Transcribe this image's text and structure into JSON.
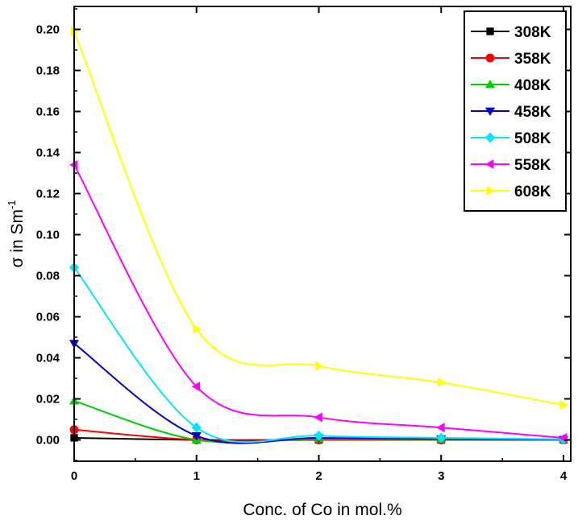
{
  "chart_data": {
    "type": "line",
    "xlabel": "Conc. of Co in mol.%",
    "ylabel": "σ in Sm",
    "ylabel_superscript": "-1",
    "xlim": [
      0,
      4
    ],
    "ylim": [
      -0.01,
      0.21
    ],
    "x_ticks": [
      0,
      1,
      2,
      3,
      4
    ],
    "y_ticks": [
      0.0,
      0.02,
      0.04,
      0.06,
      0.08,
      0.1,
      0.12,
      0.14,
      0.16,
      0.18,
      0.2
    ],
    "x_tick_labels": [
      "0",
      "1",
      "2",
      "3",
      "4"
    ],
    "y_tick_labels": [
      "0.00",
      "0.02",
      "0.04",
      "0.06",
      "0.08",
      "0.10",
      "0.12",
      "0.14",
      "0.16",
      "0.18",
      "0.20"
    ],
    "grid": false,
    "legend_position": "top-right",
    "x": [
      0,
      1,
      2,
      3,
      4
    ],
    "series": [
      {
        "name": "308K",
        "color": "#000000",
        "marker": "square",
        "values": [
          0.001,
          0.0,
          0.0,
          0.0,
          0.0
        ]
      },
      {
        "name": "358K",
        "color": "#ff0000",
        "marker": "circle",
        "values": [
          0.005,
          0.0,
          0.0,
          0.0,
          0.0
        ]
      },
      {
        "name": "408K",
        "color": "#00cc00",
        "marker": "triangle-up",
        "values": [
          0.019,
          0.0,
          0.0005,
          0.0003,
          0.0002
        ]
      },
      {
        "name": "458K",
        "color": "#0000cc",
        "marker": "triangle-down",
        "values": [
          0.047,
          0.002,
          0.001,
          0.0005,
          0.0002
        ]
      },
      {
        "name": "508K",
        "color": "#00e5ff",
        "marker": "diamond",
        "values": [
          0.084,
          0.006,
          0.002,
          0.001,
          0.0003
        ]
      },
      {
        "name": "558K",
        "color": "#ff00ff",
        "marker": "triangle-left",
        "values": [
          0.134,
          0.026,
          0.011,
          0.006,
          0.001
        ]
      },
      {
        "name": "608K",
        "color": "#ffff00",
        "marker": "triangle-right",
        "values": [
          0.199,
          0.054,
          0.036,
          0.028,
          0.017
        ]
      }
    ]
  }
}
